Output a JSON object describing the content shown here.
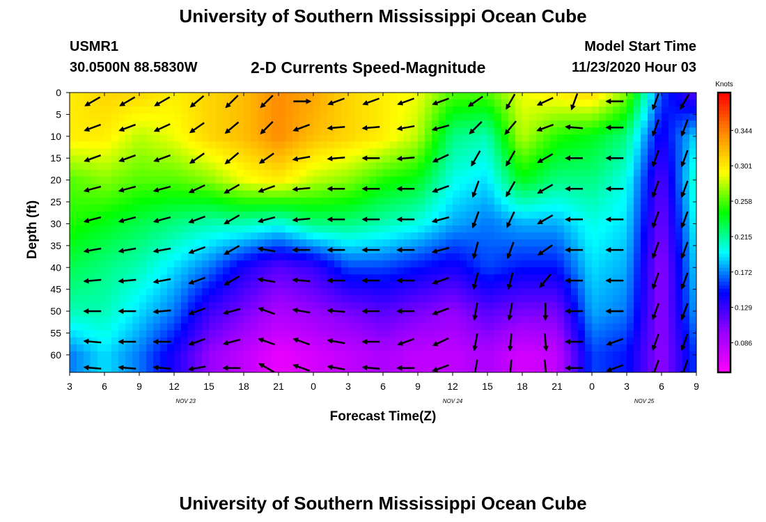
{
  "header": {
    "title": "University of Southern Mississippi Ocean Cube",
    "station_id": "USMR1",
    "station_coords": "30.0500N 88.5830W",
    "subtitle": "2-D Currents Speed-Magnitude",
    "model_start_label": "Model Start Time",
    "model_start_value": "11/23/2020 Hour 03"
  },
  "footer": {
    "title": "University of Southern Mississippi Ocean Cube"
  },
  "colors": {
    "ramp": [
      "#ff00ff",
      "#9900ff",
      "#0000ff",
      "#00ffff",
      "#00ff00",
      "#ffff00",
      "#ff8800",
      "#ff0000"
    ],
    "arrow": "#000000"
  },
  "chart_data": {
    "type": "heatmap",
    "title": "2-D Currents Speed-Magnitude",
    "xlabel": "Forecast Time(Z)",
    "ylabel": "Depth (ft)",
    "x_tick_labels": [
      "3",
      "6",
      "9",
      "12",
      "15",
      "18",
      "21",
      "0",
      "3",
      "6",
      "9",
      "12",
      "15",
      "18",
      "21",
      "0",
      "3",
      "6",
      "9"
    ],
    "x_hours": [
      0,
      3,
      6,
      9,
      12,
      15,
      18,
      21,
      24,
      27,
      30,
      33,
      36,
      39,
      42,
      45,
      48,
      51,
      54
    ],
    "date_labels": [
      {
        "label": "NOV 23",
        "hour": 10
      },
      {
        "label": "NOV 24",
        "hour": 33
      },
      {
        "label": "NOV 25",
        "hour": 49.5
      }
    ],
    "y_tick_labels": [
      "0",
      "5",
      "10",
      "15",
      "20",
      "25",
      "30",
      "35",
      "40",
      "45",
      "50",
      "55",
      "60"
    ],
    "y_values": [
      0,
      5,
      10,
      15,
      20,
      25,
      30,
      35,
      40,
      45,
      50,
      55,
      60
    ],
    "ylim": [
      0,
      64
    ],
    "xlim": [
      0,
      54
    ],
    "colorbar": {
      "unit": "Knots",
      "range": [
        0.05,
        0.39
      ],
      "tick_labels": [
        "0.344",
        "0.301",
        "0.258",
        "0.215",
        "0.172",
        "0.129",
        "0.086"
      ],
      "tick_values": [
        0.344,
        0.301,
        0.258,
        0.215,
        0.172,
        0.129,
        0.086
      ]
    },
    "hours": [
      0,
      3,
      6,
      9,
      12,
      15,
      18,
      21,
      24,
      27,
      30,
      33,
      36,
      39,
      42,
      45,
      48,
      51,
      54
    ],
    "speed_grid": {
      "depths": [
        0,
        10,
        20,
        30,
        40,
        50,
        60
      ],
      "rows": [
        [
          0.3,
          0.31,
          0.31,
          0.3,
          0.31,
          0.32,
          0.34,
          0.33,
          0.31,
          0.3,
          0.29,
          0.26,
          0.26,
          0.29,
          0.3,
          0.31,
          0.27,
          0.16,
          0.12
        ],
        [
          0.3,
          0.3,
          0.28,
          0.29,
          0.31,
          0.32,
          0.34,
          0.32,
          0.31,
          0.3,
          0.28,
          0.22,
          0.21,
          0.28,
          0.25,
          0.24,
          0.22,
          0.14,
          0.19
        ],
        [
          0.26,
          0.27,
          0.26,
          0.26,
          0.27,
          0.29,
          0.3,
          0.28,
          0.27,
          0.25,
          0.24,
          0.2,
          0.19,
          0.24,
          0.22,
          0.22,
          0.2,
          0.12,
          0.21
        ],
        [
          0.25,
          0.24,
          0.23,
          0.22,
          0.21,
          0.21,
          0.2,
          0.22,
          0.22,
          0.21,
          0.2,
          0.18,
          0.17,
          0.18,
          0.18,
          0.2,
          0.19,
          0.11,
          0.2
        ],
        [
          0.23,
          0.22,
          0.21,
          0.19,
          0.17,
          0.14,
          0.12,
          0.13,
          0.16,
          0.16,
          0.15,
          0.14,
          0.16,
          0.15,
          0.15,
          0.19,
          0.18,
          0.1,
          0.19
        ],
        [
          0.21,
          0.21,
          0.19,
          0.17,
          0.13,
          0.11,
          0.09,
          0.1,
          0.11,
          0.12,
          0.11,
          0.1,
          0.12,
          0.11,
          0.11,
          0.18,
          0.17,
          0.1,
          0.18
        ],
        [
          0.17,
          0.19,
          0.17,
          0.14,
          0.1,
          0.08,
          0.06,
          0.07,
          0.08,
          0.09,
          0.08,
          0.08,
          0.09,
          0.07,
          0.08,
          0.16,
          0.15,
          0.1,
          0.16
        ]
      ]
    },
    "vectors": {
      "hours": [
        2,
        5,
        8,
        11,
        14,
        17,
        20,
        23,
        26,
        29,
        32,
        35,
        38,
        41,
        43.5,
        47,
        50.5,
        53
      ],
      "depths": [
        2,
        8,
        15,
        22,
        29,
        36,
        43,
        50,
        57,
        63
      ],
      "angles_deg": [
        [
          210,
          210,
          210,
          220,
          225,
          225,
          0,
          200,
          200,
          200,
          200,
          215,
          240,
          205,
          250,
          180,
          250,
          240
        ],
        [
          200,
          200,
          205,
          215,
          220,
          225,
          200,
          185,
          185,
          190,
          195,
          225,
          230,
          200,
          175,
          180,
          250,
          250
        ],
        [
          200,
          200,
          200,
          215,
          220,
          215,
          190,
          185,
          180,
          185,
          205,
          240,
          240,
          210,
          180,
          180,
          250,
          250
        ],
        [
          195,
          195,
          195,
          205,
          210,
          200,
          185,
          180,
          180,
          180,
          200,
          250,
          240,
          210,
          180,
          180,
          250,
          250
        ],
        [
          195,
          195,
          195,
          200,
          210,
          195,
          185,
          180,
          180,
          180,
          195,
          250,
          245,
          210,
          180,
          180,
          250,
          250
        ],
        [
          190,
          190,
          190,
          200,
          210,
          170,
          180,
          180,
          180,
          180,
          195,
          255,
          250,
          215,
          180,
          180,
          250,
          250
        ],
        [
          185,
          185,
          190,
          200,
          210,
          170,
          175,
          180,
          180,
          180,
          200,
          255,
          255,
          230,
          180,
          180,
          250,
          250
        ],
        [
          180,
          180,
          185,
          200,
          195,
          160,
          170,
          175,
          180,
          180,
          200,
          260,
          260,
          270,
          180,
          180,
          250,
          250
        ],
        [
          175,
          180,
          180,
          200,
          195,
          160,
          160,
          170,
          180,
          200,
          205,
          260,
          265,
          275,
          180,
          200,
          250,
          250
        ],
        [
          175,
          175,
          175,
          190,
          180,
          150,
          160,
          170,
          175,
          180,
          200,
          260,
          265,
          275,
          180,
          200,
          250,
          250
        ]
      ]
    }
  }
}
